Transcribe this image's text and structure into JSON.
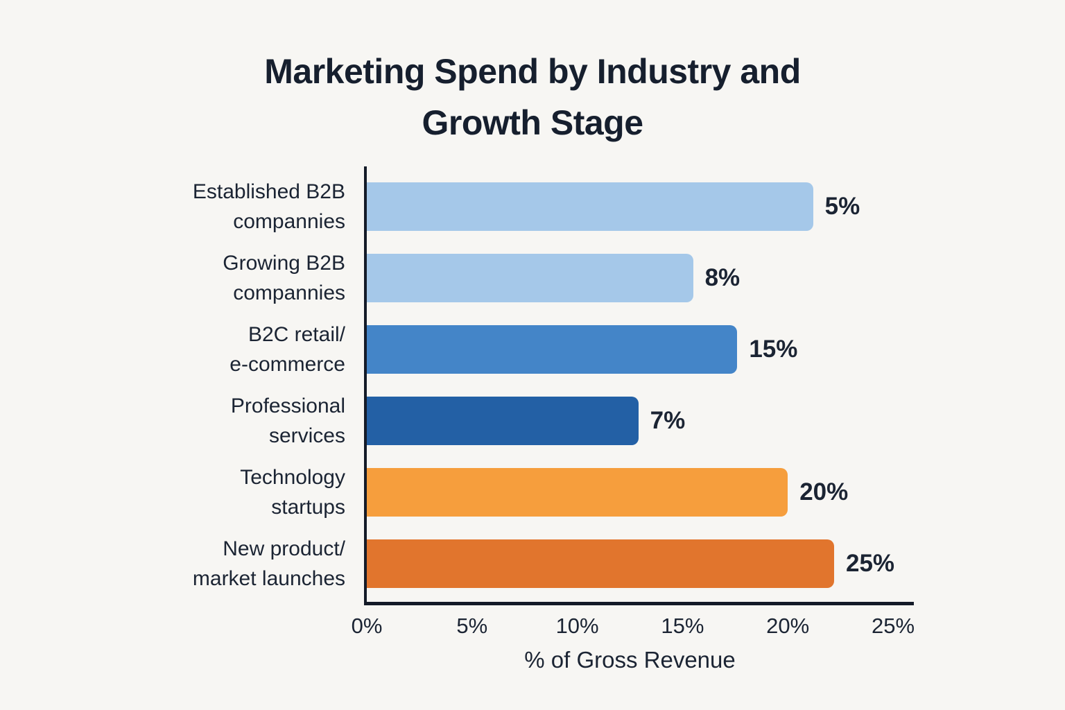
{
  "chart_data": {
    "type": "bar",
    "orientation": "horizontal",
    "title": "Marketing Spend by Industry and\nGrowth Stage",
    "xlabel": "% of Gross Revenue",
    "xlim": [
      0,
      25
    ],
    "xticks": [
      "0%",
      "5%",
      "10%",
      "15%",
      "20%",
      "25%"
    ],
    "grid": false,
    "legend": "none",
    "categories": [
      "Established B2B compannies",
      "Growing B2B compannies",
      "B2C retail/ e-commerce",
      "Professional services",
      "Technology startups",
      "New product/ market launches"
    ],
    "values": [
      5,
      8,
      15,
      7,
      20,
      25
    ],
    "value_labels": [
      "5%",
      "8%",
      "15%",
      "7%",
      "20%",
      "25%"
    ],
    "bars": [
      {
        "category": "Established B2B\ncompannies",
        "value_label": "5%",
        "visual_pct": 21.2,
        "color": "#a5c8e9"
      },
      {
        "category": "Growing B2B\ncompannies",
        "value_label": "8%",
        "visual_pct": 15.5,
        "color": "#a5c8e9"
      },
      {
        "category": "B2C retail/\ne-commerce",
        "value_label": "15%",
        "visual_pct": 17.6,
        "color": "#4485c8"
      },
      {
        "category": "Professional\nservices",
        "value_label": "7%",
        "visual_pct": 12.9,
        "color": "#2360a5"
      },
      {
        "category": "Technology\nstartups",
        "value_label": "20%",
        "visual_pct": 20.0,
        "color": "#f69e3d"
      },
      {
        "category": "New product/\nmarket launches",
        "value_label": "25%",
        "visual_pct": 22.2,
        "color": "#e1752d"
      }
    ],
    "colors": {
      "background": "#f7f6f3",
      "axis": "#141b28",
      "text": "#1b2433",
      "light_blue": "#a5c8e9",
      "medium_blue": "#4485c8",
      "dark_blue": "#2360a5",
      "orange": "#f69e3d",
      "dark_orange": "#e1752d"
    }
  }
}
